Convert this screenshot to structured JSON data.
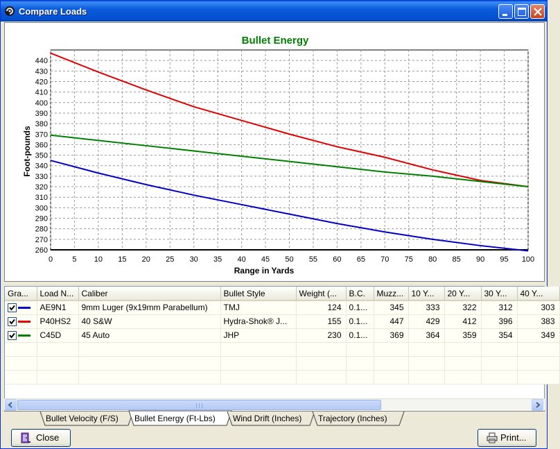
{
  "window": {
    "title": "Compare Loads"
  },
  "colors": {
    "blue": "#0000c8",
    "red": "#e00000",
    "green": "#008000",
    "title_green": "#008000"
  },
  "chart_data": {
    "type": "line",
    "title": "Bullet Energy",
    "xlabel": "Range in Yards",
    "ylabel": "Foot-pounds",
    "xlim": [
      0,
      100
    ],
    "ylim": [
      260,
      450
    ],
    "x_ticks": [
      0,
      5,
      10,
      15,
      20,
      25,
      30,
      35,
      40,
      45,
      50,
      55,
      60,
      65,
      70,
      75,
      80,
      85,
      90,
      95,
      100
    ],
    "y_ticks": [
      260,
      270,
      280,
      290,
      300,
      310,
      320,
      330,
      340,
      350,
      360,
      370,
      380,
      390,
      400,
      410,
      420,
      430,
      440
    ],
    "grid": true,
    "x": [
      0,
      10,
      20,
      30,
      40,
      50,
      60,
      70,
      80,
      90,
      100
    ],
    "series": [
      {
        "name": "AE9N1",
        "color": "#0000c8",
        "values": [
          345,
          333,
          322,
          312,
          303,
          294,
          285,
          277,
          270,
          264,
          259
        ]
      },
      {
        "name": "P40HS2",
        "color": "#e00000",
        "values": [
          447,
          429,
          412,
          396,
          383,
          370,
          358,
          348,
          336,
          326,
          320
        ]
      },
      {
        "name": "C45D",
        "color": "#008000",
        "values": [
          369,
          364,
          359,
          354,
          349,
          344,
          339,
          334,
          330,
          325,
          320
        ]
      }
    ]
  },
  "table": {
    "columns": [
      "Gra...",
      "Load N...",
      "Caliber",
      "Bullet Style",
      "Weight (...",
      "B.C.",
      "Muzz...",
      "10 Y...",
      "20 Y...",
      "30 Y...",
      "40 Y..."
    ],
    "rows": [
      {
        "checked": true,
        "color": "#0000c8",
        "cells": [
          "AE9N1",
          "9mm Luger (9x19mm Parabellum)",
          "TMJ",
          "124",
          "0.1...",
          "345",
          "333",
          "322",
          "312",
          "303"
        ]
      },
      {
        "checked": true,
        "color": "#e00000",
        "cells": [
          "P40HS2",
          "40 S&W",
          "Hydra-Shok® J...",
          "155",
          "0.1...",
          "447",
          "429",
          "412",
          "396",
          "383"
        ]
      },
      {
        "checked": true,
        "color": "#008000",
        "cells": [
          "C45D",
          "45 Auto",
          "JHP",
          "230",
          "0.1...",
          "369",
          "364",
          "359",
          "354",
          "349"
        ]
      }
    ]
  },
  "tabs": [
    {
      "label": "Bullet Velocity (F/S)",
      "active": false
    },
    {
      "label": "Bullet Energy (Ft-Lbs)",
      "active": true
    },
    {
      "label": "Wind Drift (Inches)",
      "active": false
    },
    {
      "label": "Trajectory (Inches)",
      "active": false
    }
  ],
  "buttons": {
    "close": "Close",
    "print": "Print..."
  }
}
